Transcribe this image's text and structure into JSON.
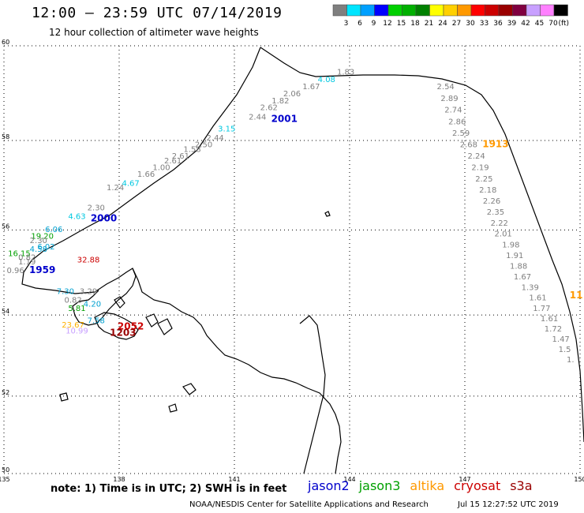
{
  "header": {
    "title": "12:00 — 23:59 UTC 07/14/2019",
    "subtitle": "12 hour collection of altimeter wave heights"
  },
  "legend": {
    "unit": "(ft)",
    "bins": [
      {
        "label": "3",
        "color": "#7f7f7f"
      },
      {
        "label": "6",
        "color": "#00e5ff"
      },
      {
        "label": "9",
        "color": "#00a0ff"
      },
      {
        "label": "12",
        "color": "#0000ff"
      },
      {
        "label": "15",
        "color": "#00d000"
      },
      {
        "label": "18",
        "color": "#00b000"
      },
      {
        "label": "21",
        "color": "#008000"
      },
      {
        "label": "24",
        "color": "#ffff00"
      },
      {
        "label": "27",
        "color": "#ffd000"
      },
      {
        "label": "30",
        "color": "#ff9900"
      },
      {
        "label": "33",
        "color": "#ff0000"
      },
      {
        "label": "36",
        "color": "#cc0000"
      },
      {
        "label": "39",
        "color": "#990000"
      },
      {
        "label": "42",
        "color": "#800040"
      },
      {
        "label": "45",
        "color": "#c8a0ff"
      },
      {
        "label": "70",
        "color": "#ff80ff"
      },
      {
        "label": "",
        "color": "#000000"
      }
    ]
  },
  "axes": {
    "lon_labels": [
      "135",
      "138",
      "141",
      "144",
      "147",
      "150"
    ],
    "lat_labels": [
      "50",
      "52",
      "54",
      "56",
      "58",
      "60"
    ]
  },
  "tracks": [
    {
      "name": "2001",
      "color": "#0000cc",
      "values": [
        {
          "v": "1.83",
          "lon": 143.9,
          "lat": 59.4,
          "c": "#7f7f7f"
        },
        {
          "v": "4.08",
          "lon": 143.4,
          "lat": 59.25,
          "c": "#00c8e0"
        },
        {
          "v": "1.67",
          "lon": 143.0,
          "lat": 59.1,
          "c": "#7f7f7f"
        },
        {
          "v": "2.06",
          "lon": 142.5,
          "lat": 58.95,
          "c": "#7f7f7f"
        },
        {
          "v": "1.82",
          "lon": 142.2,
          "lat": 58.8,
          "c": "#7f7f7f"
        },
        {
          "v": "2.62",
          "lon": 141.9,
          "lat": 58.65,
          "c": "#7f7f7f"
        },
        {
          "v": "2.44",
          "lon": 141.6,
          "lat": 58.45,
          "c": "#7f7f7f"
        },
        {
          "v": "3.15",
          "lon": 140.8,
          "lat": 58.2,
          "c": "#00c8e0"
        },
        {
          "v": "2.44",
          "lon": 140.5,
          "lat": 58.0,
          "c": "#7f7f7f"
        },
        {
          "v": "2.50",
          "lon": 140.2,
          "lat": 57.85,
          "c": "#7f7f7f"
        },
        {
          "v": "1.58",
          "lon": 139.9,
          "lat": 57.75,
          "c": "#7f7f7f"
        },
        {
          "v": "2.61",
          "lon": 139.6,
          "lat": 57.6,
          "c": "#7f7f7f"
        },
        {
          "v": "2.61",
          "lon": 139.4,
          "lat": 57.5,
          "c": "#7f7f7f"
        },
        {
          "v": "1.00",
          "lon": 139.1,
          "lat": 57.35,
          "c": "#7f7f7f"
        },
        {
          "v": "1.66",
          "lon": 138.7,
          "lat": 57.2,
          "c": "#7f7f7f"
        },
        {
          "v": "4.67",
          "lon": 138.3,
          "lat": 57.0,
          "c": "#00c8e0"
        },
        {
          "v": "1.24",
          "lon": 137.9,
          "lat": 56.9,
          "c": "#7f7f7f"
        }
      ]
    },
    {
      "name": "2000",
      "color": "#0000cc",
      "values": [
        {
          "v": "2.30",
          "lon": 137.4,
          "lat": 56.45,
          "c": "#7f7f7f"
        },
        {
          "v": "4.63",
          "lon": 136.9,
          "lat": 56.25,
          "c": "#00c8e0"
        },
        {
          "v": "6.06",
          "lon": 136.3,
          "lat": 55.95,
          "c": "#00a0d0"
        },
        {
          "v": "19.20",
          "lon": 136.0,
          "lat": 55.8,
          "c": "#00a000"
        },
        {
          "v": "2.30",
          "lon": 135.9,
          "lat": 55.7,
          "c": "#7f7f7f"
        },
        {
          "v": "6.02",
          "lon": 136.1,
          "lat": 55.55,
          "c": "#00a0d0"
        },
        {
          "v": "4.58",
          "lon": 135.9,
          "lat": 55.5,
          "c": "#00a0d0"
        },
        {
          "v": "16.15",
          "lon": 135.4,
          "lat": 55.4,
          "c": "#00a000"
        },
        {
          "v": "0.82",
          "lon": 135.6,
          "lat": 55.3,
          "c": "#7f7f7f"
        },
        {
          "v": "1.19",
          "lon": 135.6,
          "lat": 55.2,
          "c": "#7f7f7f"
        }
      ]
    },
    {
      "name": "1913",
      "color": "#ff9900",
      "values": [
        {
          "v": "2.54",
          "lon": 146.5,
          "lat": 59.1,
          "c": "#7f7f7f"
        },
        {
          "v": "2.89",
          "lon": 146.6,
          "lat": 58.85,
          "c": "#7f7f7f"
        },
        {
          "v": "2.74",
          "lon": 146.7,
          "lat": 58.6,
          "c": "#7f7f7f"
        },
        {
          "v": "2.86",
          "lon": 146.8,
          "lat": 58.35,
          "c": "#7f7f7f"
        },
        {
          "v": "2.59",
          "lon": 146.9,
          "lat": 58.1,
          "c": "#7f7f7f"
        },
        {
          "v": "2.68",
          "lon": 147.1,
          "lat": 57.85,
          "c": "#7f7f7f"
        },
        {
          "v": "2.24",
          "lon": 147.3,
          "lat": 57.6,
          "c": "#7f7f7f"
        },
        {
          "v": "2.19",
          "lon": 147.4,
          "lat": 57.35,
          "c": "#7f7f7f"
        },
        {
          "v": "2.25",
          "lon": 147.5,
          "lat": 57.1,
          "c": "#7f7f7f"
        },
        {
          "v": "2.18",
          "lon": 147.6,
          "lat": 56.85,
          "c": "#7f7f7f"
        },
        {
          "v": "2.26",
          "lon": 147.7,
          "lat": 56.6,
          "c": "#7f7f7f"
        },
        {
          "v": "2.35",
          "lon": 147.8,
          "lat": 56.35,
          "c": "#7f7f7f"
        },
        {
          "v": "2.22",
          "lon": 147.9,
          "lat": 56.1,
          "c": "#7f7f7f"
        },
        {
          "v": "2.01",
          "lon": 148.0,
          "lat": 55.85,
          "c": "#7f7f7f"
        },
        {
          "v": "1.98",
          "lon": 148.2,
          "lat": 55.6,
          "c": "#7f7f7f"
        },
        {
          "v": "1.91",
          "lon": 148.3,
          "lat": 55.35,
          "c": "#7f7f7f"
        },
        {
          "v": "1.88",
          "lon": 148.4,
          "lat": 55.1,
          "c": "#7f7f7f"
        },
        {
          "v": "1.67",
          "lon": 148.5,
          "lat": 54.85,
          "c": "#7f7f7f"
        },
        {
          "v": "1.39",
          "lon": 148.7,
          "lat": 54.6,
          "c": "#7f7f7f"
        },
        {
          "v": "1.61",
          "lon": 148.9,
          "lat": 54.35,
          "c": "#7f7f7f"
        },
        {
          "v": "1.77",
          "lon": 149.0,
          "lat": 54.1,
          "c": "#7f7f7f"
        },
        {
          "v": "1.61",
          "lon": 149.2,
          "lat": 53.85,
          "c": "#7f7f7f"
        },
        {
          "v": "1.72",
          "lon": 149.3,
          "lat": 53.6,
          "c": "#7f7f7f"
        },
        {
          "v": "1.47",
          "lon": 149.5,
          "lat": 53.35,
          "c": "#7f7f7f"
        },
        {
          "v": "1.5",
          "lon": 149.6,
          "lat": 53.1,
          "c": "#7f7f7f"
        },
        {
          "v": "1.",
          "lon": 149.75,
          "lat": 52.85,
          "c": "#7f7f7f"
        }
      ]
    },
    {
      "name": "1959",
      "color": "#0000cc",
      "values": [
        {
          "v": "0.96",
          "lon": 135.3,
          "lat": 55.0,
          "c": "#7f7f7f"
        },
        {
          "v": "32.88",
          "lon": 137.2,
          "lat": 55.25,
          "c": "#cc0000"
        },
        {
          "v": "7.30",
          "lon": 136.6,
          "lat": 54.5,
          "c": "#00a0d0"
        },
        {
          "v": "3.29",
          "lon": 137.2,
          "lat": 54.5,
          "c": "#7f7f7f"
        },
        {
          "v": "0.82",
          "lon": 136.8,
          "lat": 54.3,
          "c": "#7f7f7f"
        },
        {
          "v": "4.20",
          "lon": 137.3,
          "lat": 54.2,
          "c": "#00a0d0"
        },
        {
          "v": "5.81",
          "lon": 136.9,
          "lat": 54.1,
          "c": "#00a000"
        },
        {
          "v": "7.58",
          "lon": 137.4,
          "lat": 53.8,
          "c": "#00a0d0"
        },
        {
          "v": "23.67",
          "lon": 136.8,
          "lat": 53.7,
          "c": "#ffb000"
        },
        {
          "v": "10.99",
          "lon": 136.9,
          "lat": 53.55,
          "c": "#c8a0ff"
        }
      ]
    },
    {
      "name": "2052",
      "color": "#cc0000",
      "values": []
    },
    {
      "name": "1203",
      "color": "#990000",
      "values": []
    }
  ],
  "track_labels": [
    {
      "text": "2001",
      "lon": 142.3,
      "lat": 58.4,
      "color": "#0000cc"
    },
    {
      "text": "2000",
      "lon": 137.6,
      "lat": 56.2,
      "color": "#0000cc"
    },
    {
      "text": "1913",
      "lon": 147.8,
      "lat": 57.85,
      "color": "#ff9900"
    },
    {
      "text": "1959",
      "lon": 136.0,
      "lat": 55.0,
      "color": "#0000cc"
    },
    {
      "text": "2052",
      "lon": 138.3,
      "lat": 53.65,
      "color": "#cc0000"
    },
    {
      "text": "1203",
      "lon": 138.1,
      "lat": 53.5,
      "color": "#990000"
    },
    {
      "text": "11",
      "lon": 149.9,
      "lat": 54.4,
      "color": "#ff9900"
    }
  ],
  "footer": {
    "note": "note:  1) Time is in UTC; 2) SWH is in feet",
    "satellites": [
      {
        "name": "jason2",
        "color": "#0000cc"
      },
      {
        "name": "jason3",
        "color": "#00a000"
      },
      {
        "name": "altika",
        "color": "#ff9900"
      },
      {
        "name": "cryosat",
        "color": "#cc0000"
      },
      {
        "name": "s3a",
        "color": "#990000"
      }
    ],
    "credit": "NOAA/NESDIS Center for Satellite Applications and Research",
    "timestamp": "Jul 15 12:27:52 UTC 2019"
  }
}
